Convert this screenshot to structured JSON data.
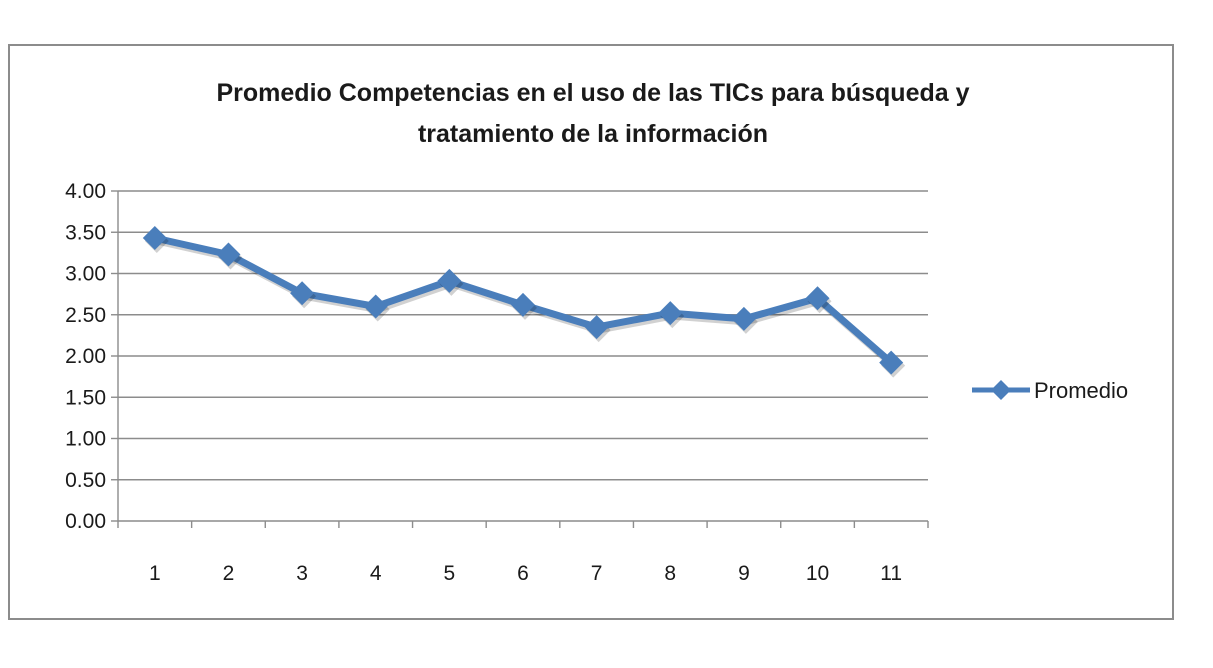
{
  "chart_data": {
    "type": "line",
    "title_lines": [
      "Promedio Competencias en el uso de las TICs para búsqueda y",
      "tratamiento de la información"
    ],
    "categories": [
      "1",
      "2",
      "3",
      "4",
      "5",
      "6",
      "7",
      "8",
      "9",
      "10",
      "11"
    ],
    "series": [
      {
        "name": "Promedio",
        "color": "#4a7ebb",
        "values": [
          3.43,
          3.23,
          2.76,
          2.6,
          2.91,
          2.62,
          2.35,
          2.52,
          2.45,
          2.7,
          1.92
        ]
      }
    ],
    "y_ticks": [
      "4.00",
      "3.50",
      "3.00",
      "2.50",
      "2.00",
      "1.50",
      "1.00",
      "0.50",
      "0.00"
    ],
    "ylim": [
      0,
      4
    ],
    "grid": true,
    "legend_position": "right",
    "marker": "diamond"
  }
}
